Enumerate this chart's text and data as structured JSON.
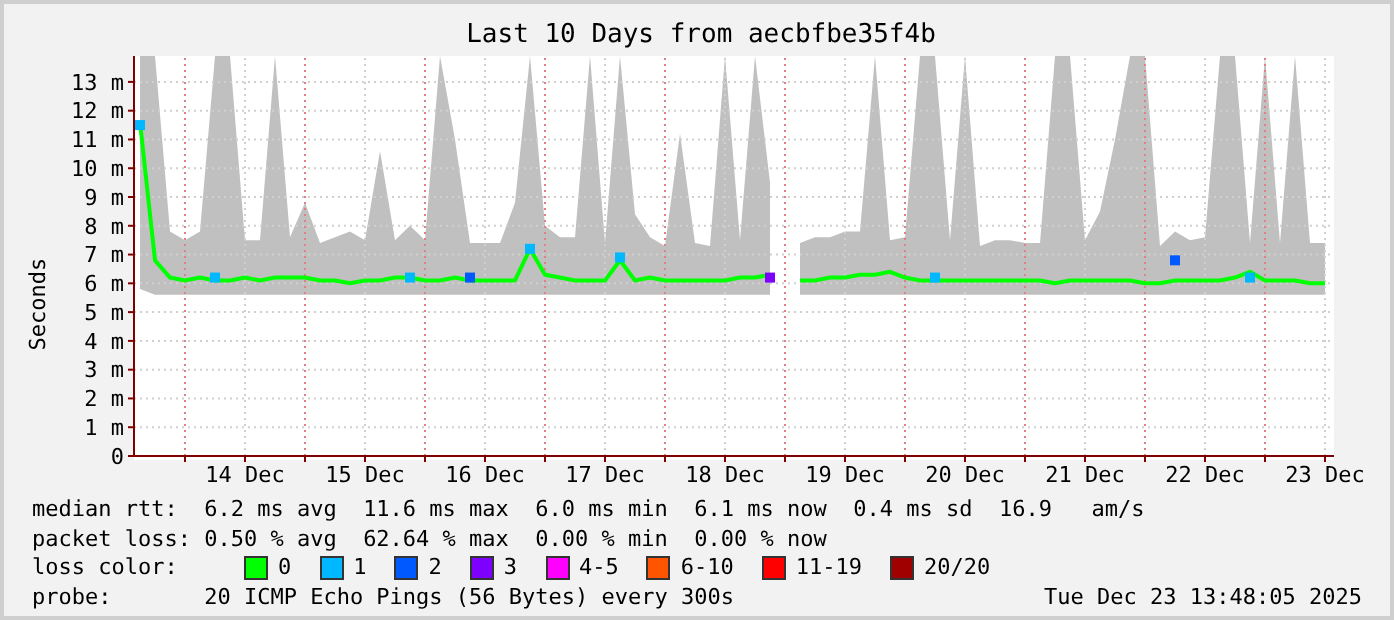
{
  "chart_data": {
    "type": "line",
    "title": "Last 10 Days from aecbfbe35f4b",
    "ylabel": "Seconds",
    "x": [
      "2025-12-13T15:00",
      "2025-12-13T18:00",
      "2025-12-13T21:00",
      "2025-12-14T00:00",
      "2025-12-14T03:00",
      "2025-12-14T06:00",
      "2025-12-14T09:00",
      "2025-12-14T12:00",
      "2025-12-14T15:00",
      "2025-12-14T18:00",
      "2025-12-14T21:00",
      "2025-12-15T00:00",
      "2025-12-15T03:00",
      "2025-12-15T06:00",
      "2025-12-15T09:00",
      "2025-12-15T12:00",
      "2025-12-15T15:00",
      "2025-12-15T18:00",
      "2025-12-15T21:00",
      "2025-12-16T00:00",
      "2025-12-16T03:00",
      "2025-12-16T06:00",
      "2025-12-16T09:00",
      "2025-12-16T12:00",
      "2025-12-16T15:00",
      "2025-12-16T18:00",
      "2025-12-16T21:00",
      "2025-12-17T00:00",
      "2025-12-17T03:00",
      "2025-12-17T06:00",
      "2025-12-17T09:00",
      "2025-12-17T12:00",
      "2025-12-17T15:00",
      "2025-12-17T18:00",
      "2025-12-17T21:00",
      "2025-12-18T00:00",
      "2025-12-18T03:00",
      "2025-12-18T06:00",
      "2025-12-18T09:00",
      "2025-12-18T12:00",
      "2025-12-18T15:00",
      "2025-12-18T18:00",
      "2025-12-18T21:00",
      "2025-12-19T00:00",
      "2025-12-19T03:00",
      "2025-12-19T06:00",
      "2025-12-19T09:00",
      "2025-12-19T12:00",
      "2025-12-19T15:00",
      "2025-12-19T18:00",
      "2025-12-19T21:00",
      "2025-12-20T00:00",
      "2025-12-20T03:00",
      "2025-12-20T06:00",
      "2025-12-20T09:00",
      "2025-12-20T12:00",
      "2025-12-20T15:00",
      "2025-12-20T18:00",
      "2025-12-20T21:00",
      "2025-12-21T00:00",
      "2025-12-21T03:00",
      "2025-12-21T06:00",
      "2025-12-21T09:00",
      "2025-12-21T12:00",
      "2025-12-21T15:00",
      "2025-12-21T18:00",
      "2025-12-21T21:00",
      "2025-12-22T00:00",
      "2025-12-22T03:00",
      "2025-12-22T06:00",
      "2025-12-22T09:00",
      "2025-12-22T12:00",
      "2025-12-22T15:00",
      "2025-12-22T18:00",
      "2025-12-22T21:00",
      "2025-12-23T00:00",
      "2025-12-23T03:00",
      "2025-12-23T06:00",
      "2025-12-23T09:00",
      "2025-12-23T12:00"
    ],
    "series": [
      {
        "name": "0",
        "color": "#00ff00",
        "values": [
          11.6,
          6.8,
          6.2,
          6.1,
          6.2,
          6.1,
          6.1,
          6.2,
          6.1,
          6.2,
          6.2,
          6.2,
          6.1,
          6.1,
          6.0,
          6.1,
          6.1,
          6.2,
          6.2,
          6.1,
          6.1,
          6.2,
          6.1,
          6.1,
          6.1,
          6.1,
          7.2,
          6.3,
          6.2,
          6.1,
          6.1,
          6.1,
          6.8,
          6.1,
          6.2,
          6.1,
          6.1,
          6.1,
          6.1,
          6.1,
          6.2,
          6.2,
          6.3,
          null,
          6.1,
          6.1,
          6.2,
          6.2,
          6.3,
          6.3,
          6.4,
          6.2,
          6.1,
          6.1,
          6.1,
          6.1,
          6.1,
          6.1,
          6.1,
          6.1,
          6.1,
          6.0,
          6.1,
          6.1,
          6.1,
          6.1,
          6.1,
          6.0,
          6.0,
          6.1,
          6.1,
          6.1,
          6.1,
          6.2,
          6.4,
          6.1,
          6.1,
          6.1,
          6.0,
          6.0
        ],
        "lower": [
          5.8,
          5.6,
          5.6,
          5.6,
          5.6,
          5.6,
          5.6,
          5.6,
          5.6,
          5.6,
          5.6,
          5.6,
          5.6,
          5.6,
          5.6,
          5.6,
          5.6,
          5.6,
          5.6,
          5.6,
          5.6,
          5.6,
          5.6,
          5.6,
          5.6,
          5.6,
          5.6,
          5.6,
          5.6,
          5.6,
          5.6,
          5.6,
          5.6,
          5.6,
          5.6,
          5.6,
          5.6,
          5.6,
          5.6,
          5.6,
          5.6,
          5.6,
          5.6,
          null,
          5.6,
          5.6,
          5.6,
          5.6,
          5.6,
          5.6,
          5.6,
          5.6,
          5.6,
          5.6,
          5.6,
          5.6,
          5.6,
          5.6,
          5.6,
          5.6,
          5.6,
          5.6,
          5.6,
          5.6,
          5.6,
          5.6,
          5.6,
          5.6,
          5.6,
          5.6,
          5.6,
          5.6,
          5.6,
          5.6,
          5.6,
          5.6,
          5.6,
          5.6,
          5.6,
          5.6
        ],
        "upper": [
          13.9,
          13.9,
          7.8,
          7.5,
          7.8,
          13.9,
          13.9,
          7.5,
          7.5,
          13.9,
          7.6,
          8.8,
          7.4,
          7.6,
          7.8,
          7.5,
          10.6,
          7.5,
          8.0,
          7.5,
          13.9,
          11.0,
          7.4,
          7.4,
          7.4,
          8.8,
          13.9,
          8.0,
          7.6,
          7.6,
          13.9,
          7.4,
          13.9,
          8.4,
          7.6,
          7.3,
          11.2,
          7.4,
          7.3,
          13.9,
          7.5,
          13.9,
          9.5,
          null,
          7.4,
          7.6,
          7.6,
          7.8,
          7.8,
          13.9,
          7.5,
          7.6,
          13.9,
          13.9,
          7.5,
          13.9,
          7.3,
          7.5,
          7.5,
          7.4,
          7.4,
          13.9,
          13.9,
          7.5,
          8.5,
          11.0,
          13.9,
          13.9,
          7.3,
          7.8,
          7.5,
          7.6,
          13.9,
          13.9,
          7.4,
          13.9,
          7.4,
          13.9,
          7.4,
          7.4
        ]
      },
      {
        "name": "1",
        "type": "scatter",
        "color": "#00b8ff",
        "x": [
          "2025-12-13T15:00",
          "2025-12-14T06:00",
          "2025-12-15T21:00",
          "2025-12-16T21:00",
          "2025-12-17T15:00",
          "2025-12-20T06:00",
          "2025-12-22T21:00"
        ],
        "values": [
          11.5,
          6.2,
          6.2,
          7.2,
          6.9,
          6.2,
          6.2
        ]
      },
      {
        "name": "2",
        "type": "scatter",
        "color": "#0059ff",
        "x": [
          "2025-12-16T09:00",
          "2025-12-22T06:00"
        ],
        "values": [
          6.2,
          6.8
        ]
      },
      {
        "name": "3",
        "type": "scatter",
        "color": "#7e00ff",
        "x": [
          "2025-12-18T21:00"
        ],
        "values": [
          6.2
        ]
      },
      {
        "name": "4-5",
        "type": "scatter",
        "color": "#ff00ff",
        "values": [
          null,
          null,
          null,
          null,
          null,
          null,
          null,
          null,
          null,
          null,
          null,
          null,
          null,
          null,
          null,
          null,
          null,
          null,
          null,
          null,
          null,
          null,
          null,
          null,
          null,
          null,
          null,
          null,
          null,
          null,
          null,
          null,
          null,
          null,
          null,
          null,
          null,
          null,
          null,
          null,
          null,
          null,
          null,
          null,
          null,
          null,
          null,
          null,
          null,
          null,
          null,
          null,
          null,
          null,
          null,
          null,
          null,
          null,
          null,
          null,
          null,
          null,
          null,
          null,
          null,
          null,
          null,
          null,
          null,
          null,
          null,
          null,
          null,
          null,
          null,
          null,
          null,
          null,
          null,
          null
        ]
      },
      {
        "name": "6-10",
        "type": "scatter",
        "color": "#ff5500",
        "values": [
          null,
          null,
          null,
          null,
          null,
          null,
          null,
          null,
          null,
          null,
          null,
          null,
          null,
          null,
          null,
          null,
          null,
          null,
          null,
          null,
          null,
          null,
          null,
          null,
          null,
          null,
          null,
          null,
          null,
          null,
          null,
          null,
          null,
          null,
          null,
          null,
          null,
          null,
          null,
          null,
          null,
          null,
          null,
          null,
          null,
          null,
          null,
          null,
          null,
          null,
          null,
          null,
          null,
          null,
          null,
          null,
          null,
          null,
          null,
          null,
          null,
          null,
          null,
          null,
          null,
          null,
          null,
          null,
          null,
          null,
          null,
          null,
          null,
          null,
          null,
          null,
          null,
          null,
          null,
          null
        ]
      },
      {
        "name": "11-19",
        "type": "scatter",
        "color": "#ff0000",
        "values": [
          null,
          null,
          null,
          null,
          null,
          null,
          null,
          null,
          null,
          null,
          null,
          null,
          null,
          null,
          null,
          null,
          null,
          null,
          null,
          null,
          null,
          null,
          null,
          null,
          null,
          null,
          null,
          null,
          null,
          null,
          null,
          null,
          null,
          null,
          null,
          null,
          null,
          null,
          null,
          null,
          null,
          null,
          null,
          null,
          null,
          null,
          null,
          null,
          null,
          null,
          null,
          null,
          null,
          null,
          null,
          null,
          null,
          null,
          null,
          null,
          null,
          null,
          null,
          null,
          null,
          null,
          null,
          null,
          null,
          null,
          null,
          null,
          null,
          null,
          null,
          null,
          null,
          null,
          null,
          null
        ]
      },
      {
        "name": "20/20",
        "type": "scatter",
        "color": "#a10000",
        "values": [
          null,
          null,
          null,
          null,
          null,
          null,
          null,
          null,
          null,
          null,
          null,
          null,
          null,
          null,
          null,
          null,
          null,
          null,
          null,
          null,
          null,
          null,
          null,
          null,
          null,
          null,
          null,
          null,
          null,
          null,
          null,
          null,
          null,
          null,
          null,
          null,
          null,
          null,
          null,
          null,
          null,
          null,
          null,
          null,
          null,
          null,
          null,
          null,
          null,
          null,
          null,
          null,
          null,
          null,
          null,
          null,
          null,
          null,
          null,
          null,
          null,
          null,
          null,
          null,
          null,
          null,
          null,
          null,
          null,
          null,
          null,
          null,
          null,
          null,
          null,
          null,
          null,
          null,
          null,
          null
        ]
      }
    ],
    "xlim": [
      "2025-12-13T13:48",
      "2025-12-23T13:48"
    ],
    "xticks": [
      {
        "value": "2025-12-14T00:00",
        "label": null
      },
      {
        "value": "2025-12-14T12:00",
        "label": "14 Dec"
      },
      {
        "value": "2025-12-15T00:00",
        "label": null
      },
      {
        "value": "2025-12-15T12:00",
        "label": "15 Dec"
      },
      {
        "value": "2025-12-16T00:00",
        "label": null
      },
      {
        "value": "2025-12-16T12:00",
        "label": "16 Dec"
      },
      {
        "value": "2025-12-17T00:00",
        "label": null
      },
      {
        "value": "2025-12-17T12:00",
        "label": "17 Dec"
      },
      {
        "value": "2025-12-18T00:00",
        "label": null
      },
      {
        "value": "2025-12-18T12:00",
        "label": "18 Dec"
      },
      {
        "value": "2025-12-19T00:00",
        "label": null
      },
      {
        "value": "2025-12-19T12:00",
        "label": "19 Dec"
      },
      {
        "value": "2025-12-20T00:00",
        "label": null
      },
      {
        "value": "2025-12-20T12:00",
        "label": "20 Dec"
      },
      {
        "value": "2025-12-21T00:00",
        "label": null
      },
      {
        "value": "2025-12-21T12:00",
        "label": "21 Dec"
      },
      {
        "value": "2025-12-22T00:00",
        "label": null
      },
      {
        "value": "2025-12-22T12:00",
        "label": "22 Dec"
      },
      {
        "value": "2025-12-23T00:00",
        "label": null
      },
      {
        "value": "2025-12-23T12:00",
        "label": "23 Dec"
      }
    ],
    "ylim": [
      0,
      13.9
    ],
    "yticks": [
      0,
      {
        "value": 1,
        "label": "1 m"
      },
      {
        "value": 2,
        "label": "2 m"
      },
      {
        "value": 3,
        "label": "3 m"
      },
      {
        "value": 4,
        "label": "4 m"
      },
      {
        "value": 5,
        "label": "5 m"
      },
      {
        "value": 6,
        "label": "6 m"
      },
      {
        "value": 7,
        "label": "7 m"
      },
      {
        "value": 8,
        "label": "8 m"
      },
      {
        "value": 9,
        "label": "9 m"
      },
      {
        "value": 10,
        "label": "10 m"
      },
      {
        "value": 11,
        "label": "11 m"
      },
      {
        "value": 12,
        "label": "12 m"
      },
      {
        "value": 13,
        "label": "13 m"
      }
    ],
    "grid": true,
    "legend": "bottom",
    "legend_title": "loss color:",
    "annotations": [
      "median rtt:  6.2 ms avg  11.6 ms max  6.0 ms min  6.1 ms now  0.4 ms sd  16.9   am/s",
      "packet loss: 0.50 % avg  62.64 % max  0.00 % min  0.00 % now",
      "probe:       20 ICMP Echo Pings (56 Bytes) every 300s",
      "Tue Dec 23 13:48:05 2025"
    ]
  }
}
